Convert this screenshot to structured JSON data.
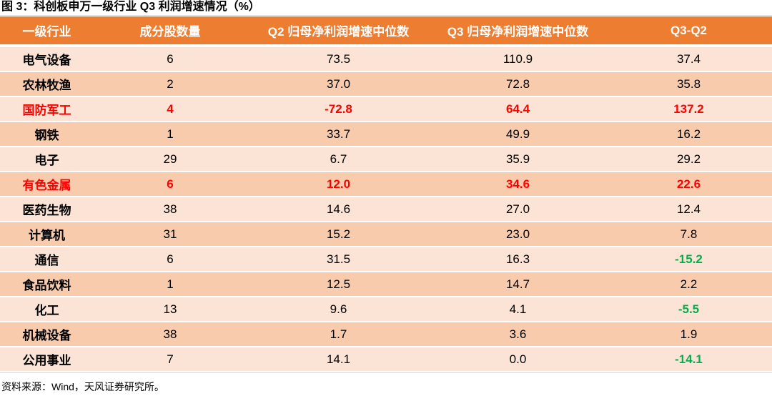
{
  "title": "图 3：科创板申万一级行业 Q3 利润增速情况（%）",
  "headers": [
    "一级行业",
    "成分股数量",
    "Q2 归母净利润增速中位数",
    "Q3 归母净利润增速中位数",
    "Q3-Q2"
  ],
  "rows": [
    {
      "industry": "电气设备",
      "count": "6",
      "q2": "73.5",
      "q3": "110.9",
      "diff": "37.4",
      "highlight": false,
      "negative": false
    },
    {
      "industry": "农林牧渔",
      "count": "2",
      "q2": "37.0",
      "q3": "72.8",
      "diff": "35.8",
      "highlight": false,
      "negative": false
    },
    {
      "industry": "国防军工",
      "count": "4",
      "q2": "-72.8",
      "q3": "64.4",
      "diff": "137.2",
      "highlight": true,
      "negative": false
    },
    {
      "industry": "钢铁",
      "count": "1",
      "q2": "33.7",
      "q3": "49.9",
      "diff": "16.2",
      "highlight": false,
      "negative": false
    },
    {
      "industry": "电子",
      "count": "29",
      "q2": "6.7",
      "q3": "35.9",
      "diff": "29.2",
      "highlight": false,
      "negative": false
    },
    {
      "industry": "有色金属",
      "count": "6",
      "q2": "12.0",
      "q3": "34.6",
      "diff": "22.6",
      "highlight": true,
      "negative": false
    },
    {
      "industry": "医药生物",
      "count": "38",
      "q2": "14.6",
      "q3": "27.0",
      "diff": "12.4",
      "highlight": false,
      "negative": false
    },
    {
      "industry": "计算机",
      "count": "31",
      "q2": "15.2",
      "q3": "23.0",
      "diff": "7.8",
      "highlight": false,
      "negative": false
    },
    {
      "industry": "通信",
      "count": "6",
      "q2": "31.5",
      "q3": "16.3",
      "diff": "-15.2",
      "highlight": false,
      "negative": true
    },
    {
      "industry": "食品饮料",
      "count": "1",
      "q2": "12.5",
      "q3": "14.7",
      "diff": "2.2",
      "highlight": false,
      "negative": false
    },
    {
      "industry": "化工",
      "count": "13",
      "q2": "9.6",
      "q3": "4.1",
      "diff": "-5.5",
      "highlight": false,
      "negative": true
    },
    {
      "industry": "机械设备",
      "count": "38",
      "q2": "1.7",
      "q3": "3.6",
      "diff": "1.9",
      "highlight": false,
      "negative": false
    },
    {
      "industry": "公用事业",
      "count": "7",
      "q2": "14.1",
      "q3": "0.0",
      "diff": "-14.1",
      "highlight": false,
      "negative": true
    }
  ],
  "source": "资料来源：Wind，天风证券研究所。",
  "colors": {
    "header_bg": "#ed7d31",
    "row_light": "#fbe4d5",
    "row_dark": "#f8cbad",
    "highlight_text": "#ff0000",
    "negative_text": "#00b050"
  }
}
